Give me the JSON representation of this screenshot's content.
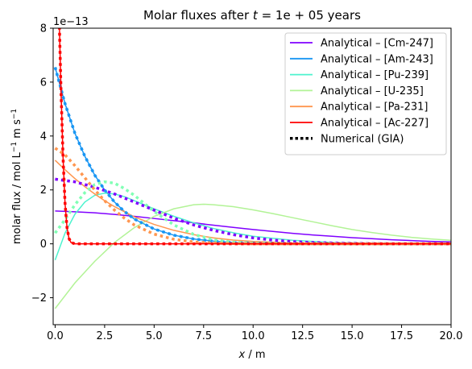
{
  "chart_data": {
    "type": "line",
    "title_prefix": "Molar fluxes after ",
    "title_t": "t",
    "title_value": " = 1e + 05",
    "title_suffix": " years",
    "xlabel_var": "x",
    "xlabel_unit": " / m",
    "ylabel_text": "molar flux / mol L",
    "ylabel_exp1": "−1",
    "ylabel_mid": " m s",
    "ylabel_exp2": "−1",
    "y_offset_label": "1e−13",
    "xlim": [
      -0.1,
      20.0
    ],
    "ylim": [
      -3,
      8
    ],
    "xticks": [
      0.0,
      2.5,
      5.0,
      7.5,
      10.0,
      12.5,
      15.0,
      17.5,
      20.0
    ],
    "xtick_labels": [
      "0.0",
      "2.5",
      "5.0",
      "7.5",
      "10.0",
      "12.5",
      "15.0",
      "17.5",
      "20.0"
    ],
    "yticks": [
      -2,
      0,
      2,
      4,
      6,
      8
    ],
    "ytick_labels": [
      "−2",
      "0",
      "2",
      "4",
      "6",
      "8"
    ],
    "legend_position": "top-right",
    "series": [
      {
        "name": "Analytical – [Cm-247]",
        "color": "#8000ff",
        "x": [
          0,
          1,
          2,
          3,
          4,
          5,
          6,
          7,
          8,
          9,
          10,
          11,
          12,
          13,
          14,
          15,
          16,
          17,
          18,
          19,
          20
        ],
        "y": [
          1.22,
          1.19,
          1.15,
          1.09,
          1.02,
          0.94,
          0.86,
          0.78,
          0.69,
          0.61,
          0.53,
          0.46,
          0.39,
          0.33,
          0.28,
          0.23,
          0.19,
          0.15,
          0.12,
          0.09,
          0.07
        ]
      },
      {
        "name": "Analytical – [Am-243]",
        "color": "#1996f3",
        "x": [
          0,
          0.5,
          1,
          1.5,
          2,
          2.5,
          3,
          3.5,
          4,
          5,
          6,
          7,
          8,
          9,
          10,
          12,
          14,
          16,
          18,
          20
        ],
        "y": [
          6.55,
          5.2,
          4.1,
          3.25,
          2.55,
          2.0,
          1.55,
          1.2,
          0.92,
          0.55,
          0.32,
          0.18,
          0.1,
          0.05,
          0.03,
          0.01,
          0.0,
          0.0,
          0.0,
          0.0
        ]
      },
      {
        "name": "Analytical – [Pu-239]",
        "color": "#4df3ce",
        "x": [
          0,
          0.5,
          1,
          1.5,
          2,
          2.5,
          3,
          3.5,
          4,
          5,
          6,
          7,
          8,
          9,
          10,
          12,
          14,
          16,
          18,
          20
        ],
        "y": [
          -0.6,
          0.4,
          1.1,
          1.55,
          1.8,
          1.88,
          1.85,
          1.75,
          1.6,
          1.3,
          1.02,
          0.78,
          0.57,
          0.41,
          0.28,
          0.13,
          0.05,
          0.02,
          0.01,
          0.0
        ]
      },
      {
        "name": "Analytical – [U-235]",
        "color": "#b2f396",
        "x": [
          0,
          1,
          2,
          3,
          4,
          5,
          6,
          7,
          7.5,
          8,
          9,
          10,
          11,
          12,
          13,
          14,
          15,
          16,
          17,
          18,
          19,
          20
        ],
        "y": [
          -2.4,
          -1.45,
          -0.65,
          0.05,
          0.6,
          1.02,
          1.3,
          1.45,
          1.47,
          1.45,
          1.38,
          1.26,
          1.12,
          0.97,
          0.82,
          0.67,
          0.53,
          0.42,
          0.32,
          0.24,
          0.18,
          0.13
        ]
      },
      {
        "name": "Analytical – [Pa-231]",
        "color": "#ff964f",
        "x": [
          0,
          0.5,
          1,
          1.5,
          2,
          2.5,
          3,
          4,
          5,
          6,
          7,
          8,
          9,
          10,
          12,
          14,
          16,
          18,
          20
        ],
        "y": [
          3.1,
          2.75,
          2.42,
          2.12,
          1.85,
          1.6,
          1.38,
          1.0,
          0.72,
          0.5,
          0.34,
          0.22,
          0.14,
          0.09,
          0.03,
          0.01,
          0.0,
          0.0,
          0.0
        ]
      },
      {
        "name": "Analytical – [Ac-227]",
        "color": "#ff0000",
        "x": [
          0.2,
          0.3,
          0.4,
          0.5,
          0.6,
          0.7,
          0.8,
          1.0,
          1.5,
          2,
          5,
          10,
          15,
          20
        ],
        "y": [
          8.5,
          5.6,
          3.2,
          1.5,
          0.6,
          0.2,
          0.05,
          0.0,
          0.0,
          0.0,
          0.0,
          0.0,
          0.0,
          0.0
        ]
      }
    ],
    "numerical": {
      "name": "Numerical (GIA)",
      "color": "#000000",
      "series": [
        {
          "color": "#8000ff",
          "x": [
            0,
            1,
            2,
            3,
            4,
            5,
            6,
            7,
            8,
            9,
            10,
            11,
            12,
            13,
            14,
            15,
            16,
            17,
            18,
            19,
            20
          ],
          "y": [
            2.4,
            2.3,
            2.1,
            1.85,
            1.55,
            1.25,
            0.95,
            0.7,
            0.5,
            0.34,
            0.22,
            0.14,
            0.08,
            0.05,
            0.03,
            0.02,
            0.01,
            0.0,
            0.0,
            0.0,
            0.0
          ]
        },
        {
          "color": "#1996f3",
          "x": [
            0,
            0.5,
            1,
            1.5,
            2,
            2.5,
            3,
            3.5,
            4,
            5,
            6,
            7,
            8,
            9,
            10,
            12,
            14,
            16,
            18,
            20
          ],
          "y": [
            6.55,
            5.2,
            4.1,
            3.25,
            2.55,
            2.0,
            1.55,
            1.2,
            0.92,
            0.55,
            0.32,
            0.18,
            0.1,
            0.05,
            0.03,
            0.01,
            0.0,
            0.0,
            0.0,
            0.0
          ]
        },
        {
          "color": "#80ffb4",
          "x": [
            0,
            0.5,
            1,
            1.5,
            2,
            2.5,
            3,
            3.5,
            4,
            4.5,
            5,
            6,
            7,
            8,
            9,
            10,
            11,
            12,
            14,
            16,
            18,
            20
          ],
          "y": [
            0.4,
            0.9,
            1.45,
            1.9,
            2.2,
            2.3,
            2.25,
            2.05,
            1.8,
            1.5,
            1.2,
            0.7,
            0.35,
            0.15,
            0.06,
            0.02,
            0.01,
            0.0,
            0.0,
            0.0,
            0.0,
            0.0
          ]
        },
        {
          "color": "#ff964f",
          "x": [
            0,
            0.5,
            1,
            1.5,
            2,
            2.5,
            3,
            3.5,
            4,
            5,
            6,
            7,
            8,
            9,
            10,
            12,
            14,
            16,
            18,
            20
          ],
          "y": [
            3.55,
            3.3,
            2.9,
            2.45,
            2.0,
            1.6,
            1.25,
            0.95,
            0.7,
            0.36,
            0.17,
            0.07,
            0.03,
            0.01,
            0.0,
            0.0,
            0.0,
            0.0,
            0.0,
            0.0
          ]
        },
        {
          "color": "#ff0000",
          "x": [
            0.2,
            0.3,
            0.4,
            0.5,
            0.6,
            0.7,
            0.8,
            1.0,
            1.5,
            2,
            5,
            10,
            15,
            20
          ],
          "y": [
            8.5,
            5.6,
            3.2,
            1.5,
            0.6,
            0.2,
            0.05,
            0.0,
            0.0,
            0.0,
            0.0,
            0.0,
            0.0,
            0.0
          ]
        }
      ]
    }
  }
}
